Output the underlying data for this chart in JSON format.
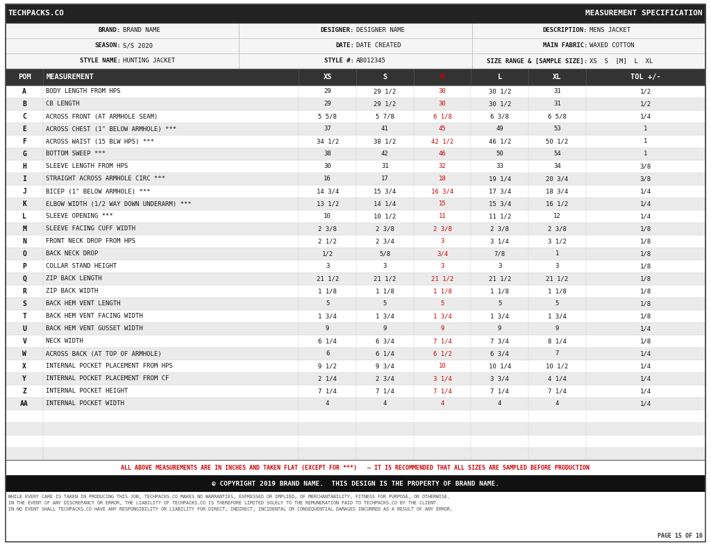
{
  "title_left": "TECHPACKS.CO",
  "title_right": "MEASUREMENT SPECIFICATION",
  "header_rows": [
    [
      [
        "BRAND:",
        "BRAND NAME"
      ],
      [
        "DESIGNER:",
        "DESIGNER NAME"
      ],
      [
        "DESCRIPTION:",
        "MENS JACKET"
      ]
    ],
    [
      [
        "SEASON:",
        "S/S 2020"
      ],
      [
        "DATE:",
        "DATE CREATED"
      ],
      [
        "MAIN FABRIC:",
        "WAXED COTTON"
      ]
    ],
    [
      [
        "STYLE NAME:",
        "HUNTING JACKET"
      ],
      [
        "STYLE #:",
        "AB012345"
      ],
      [
        "SIZE RANGE & [SAMPLE SIZE]:",
        "XS  S  [M]  L  XL"
      ]
    ]
  ],
  "col_headers": [
    "POM",
    "MEASUREMENT",
    "XS",
    "S",
    "M",
    "L",
    "XL",
    "TOL +/-"
  ],
  "rows": [
    [
      "A",
      "BODY LENGTH FROM HPS",
      "29",
      "29 1/2",
      "30",
      "30 1/2",
      "31",
      "1/2"
    ],
    [
      "B",
      "CB LENGTH",
      "29",
      "29 1/2",
      "30",
      "30 1/2",
      "31",
      "1/2"
    ],
    [
      "C",
      "ACROSS FRONT (AT ARMHOLE SEAM)",
      "5 5/8",
      "5 7/8",
      "6 1/8",
      "6 3/8",
      "6 5/8",
      "1/4"
    ],
    [
      "E",
      "ACROSS CHEST (1\" BELOW ARMHOLE) ***",
      "37",
      "41",
      "45",
      "49",
      "53",
      "1"
    ],
    [
      "F",
      "ACROSS WAIST (15 BLW HPS) ***",
      "34 1/2",
      "38 1/2",
      "42 1/2",
      "46 1/2",
      "50 1/2",
      "1"
    ],
    [
      "G",
      "BOTTOM SWEEP ***",
      "38",
      "42",
      "46",
      "50",
      "54",
      "1"
    ],
    [
      "H",
      "SLEEVE LENGTH FROM HPS",
      "30",
      "31",
      "32",
      "33",
      "34",
      "3/8"
    ],
    [
      "I",
      "STRAIGHT ACROSS ARMHOLE CIRC ***",
      "16",
      "17",
      "18",
      "19 1/4",
      "20 3/4",
      "3/8"
    ],
    [
      "J",
      "BICEP (1\" BELOW ARMHOLE) ***",
      "14 3/4",
      "15 3/4",
      "16 3/4",
      "17 3/4",
      "18 3/4",
      "1/4"
    ],
    [
      "K",
      "ELBOW WIDTH (1/2 WAY DOWN UNDERARM) ***",
      "13 1/2",
      "14 1/4",
      "15",
      "15 3/4",
      "16 1/2",
      "1/4"
    ],
    [
      "L",
      "SLEEVE OPENING ***",
      "10",
      "10 1/2",
      "11",
      "11 1/2",
      "12",
      "1/4"
    ],
    [
      "M",
      "SLEEVE FACING CUFF WIDTH",
      "2 3/8",
      "2 3/8",
      "2 3/8",
      "2 3/8",
      "2 3/8",
      "1/8"
    ],
    [
      "N",
      "FRONT NECK DROP FROM HPS",
      "2 1/2",
      "2 3/4",
      "3",
      "3 1/4",
      "3 1/2",
      "1/8"
    ],
    [
      "O",
      "BACK NECK DROP",
      "1/2",
      "5/8",
      "3/4",
      "7/8",
      "1",
      "1/8"
    ],
    [
      "P",
      "COLLAR STAND HEIGHT",
      "3",
      "3",
      "3",
      "3",
      "3",
      "1/8"
    ],
    [
      "Q",
      "ZIP BACK LENGTH",
      "21 1/2",
      "21 1/2",
      "21 1/2",
      "21 1/2",
      "21 1/2",
      "1/8"
    ],
    [
      "R",
      "ZIP BACK WIDTH",
      "1 1/8",
      "1 1/8",
      "1 1/8",
      "1 1/8",
      "1 1/8",
      "1/8"
    ],
    [
      "S",
      "BACK HEM VENT LENGTH",
      "5",
      "5",
      "5",
      "5",
      "5",
      "1/8"
    ],
    [
      "T",
      "BACK HEM VENT FACING WIDTH",
      "1 3/4",
      "1 3/4",
      "1 3/4",
      "1 3/4",
      "1 3/4",
      "1/8"
    ],
    [
      "U",
      "BACK HEM VENT GUSSET WIDTH",
      "9",
      "9",
      "9",
      "9",
      "9",
      "1/4"
    ],
    [
      "V",
      "NECK WIDTH",
      "6 1/4",
      "6 3/4",
      "7 1/4",
      "7 3/4",
      "8 1/4",
      "1/8"
    ],
    [
      "W",
      "ACROSS BACK (AT TOP OF ARMHOLE)",
      "6",
      "6 1/4",
      "6 1/2",
      "6 3/4",
      "7",
      "1/4"
    ],
    [
      "X",
      "INTERNAL POCKET PLACEMENT FROM HPS",
      "9 1/2",
      "9 3/4",
      "10",
      "10 1/4",
      "10 1/2",
      "1/4"
    ],
    [
      "Y",
      "INTERNAL POCKET PLACEMENT FROM CF",
      "2 1/4",
      "2 3/4",
      "3 1/4",
      "3 3/4",
      "4 1/4",
      "1/4"
    ],
    [
      "Z",
      "INTERNAL POCKET HEIGHT",
      "7 1/4",
      "7 1/4",
      "7 1/4",
      "7 1/4",
      "7 1/4",
      "1/4"
    ],
    [
      "AA",
      "INTERNAL POCKET WIDTH",
      "4",
      "4",
      "4",
      "4",
      "4",
      "1/4"
    ]
  ],
  "extra_empty_rows": 4,
  "footer_note": "ALL ABOVE MEASUREMENTS ARE IN INCHES AND TAKEN FLAT (EXCEPT FOR ***)   – IT IS RECOMMENDED THAT ALL SIZES ARE SAMPLED BEFORE PRODUCTION",
  "copyright": "© COPYRIGHT 2019 BRAND NAME.  THIS DESIGN IS THE PROPERTY OF BRAND NAME.",
  "disclaimer": "WHILE EVERY CARE IS TAKEN IN PRODUCING THIS JOB, TECHPACKS.CO MAKES NO WARRANTIES, EXPRESSED OR IMPLIED, OF MERCHANTABILITY, FITNESS FOR PURPOSE, OR OTHERWISE.\nIN THE EVENT OF ANY DISCREPANCY OR ERROR, THE LIABILITY OF TECHPACKS.CO IS THEREFORE LIMITED SOLELY TO THE REMUNERATION PAID TO TECHPACKS.CO BY THE CLIENT.\nIN NO EVENT SHALL TECHPACKS.CO HAVE ANY RESPONSIBILITY OR LIABILITY FOR DIRECT, INDIRECT, INCIDENTAL OR CONSEQUENTIAL DAMAGES INCURRED AS A RESULT OF ANY ERROR.",
  "page_number": "PAGE 15 OF 16",
  "bg_color": "#ffffff",
  "header_bg": "#222222",
  "header_text_color": "#ffffff",
  "col_header_bg": "#333333",
  "col_header_text": "#ffffff",
  "row_even_bg": "#ffffff",
  "row_odd_bg": "#ebebeb",
  "m_col_color": "#cc0000",
  "footer_note_color": "#cc0000",
  "border_color": "#888888",
  "text_color": "#111111",
  "info_row_bg": "#f5f5f5",
  "divider_color": "#bbbbbb"
}
